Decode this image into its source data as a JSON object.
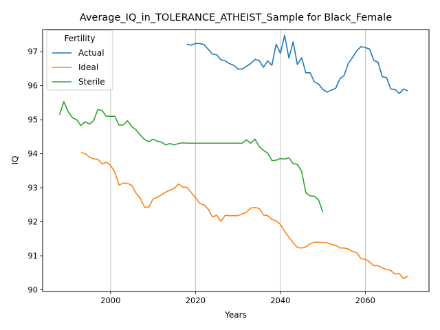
{
  "chart_data": {
    "type": "line",
    "title": "Average_IQ_in_TOLERANCE_ATHEIST_Sample for Black_Female",
    "xlabel": "Years",
    "ylabel": "IQ",
    "xlim": [
      1984,
      2075
    ],
    "ylim": [
      89.95,
      97.65
    ],
    "xticks": [
      2000,
      2020,
      2040,
      2060
    ],
    "yticks": [
      90,
      91,
      92,
      93,
      94,
      95,
      96,
      97
    ],
    "grid": "x-only",
    "legend": {
      "title": "Fertility",
      "placement": "top-left"
    },
    "series": [
      {
        "name": "Actual",
        "color": "#1f77b4",
        "x": [
          2018,
          2019,
          2020,
          2021,
          2022,
          2023,
          2024,
          2025,
          2026,
          2027,
          2028,
          2029,
          2030,
          2031,
          2032,
          2033,
          2034,
          2035,
          2036,
          2037,
          2038,
          2039,
          2040,
          2041,
          2042,
          2043,
          2044,
          2045,
          2046,
          2047,
          2048,
          2049,
          2050,
          2051,
          2052,
          2053,
          2054,
          2055,
          2056,
          2057,
          2058,
          2059,
          2060,
          2061,
          2062,
          2063,
          2064,
          2065,
          2066,
          2067,
          2068,
          2069,
          2070
        ],
        "values": [
          97.22,
          97.19,
          97.24,
          97.24,
          97.21,
          97.07,
          96.93,
          96.91,
          96.76,
          96.73,
          96.65,
          96.6,
          96.49,
          96.49,
          96.57,
          96.65,
          96.77,
          96.74,
          96.54,
          96.73,
          96.6,
          97.22,
          96.95,
          97.48,
          96.81,
          97.29,
          96.62,
          96.82,
          96.38,
          96.38,
          96.11,
          96.05,
          95.89,
          95.81,
          95.87,
          95.92,
          96.2,
          96.3,
          96.66,
          96.83,
          97.03,
          97.15,
          97.12,
          97.08,
          96.74,
          96.69,
          96.26,
          96.24,
          95.9,
          95.89,
          95.77,
          95.9,
          95.85
        ]
      },
      {
        "name": "Ideal",
        "color": "#ff7f0e",
        "x": [
          1993,
          1994,
          1995,
          1996,
          1997,
          1998,
          1999,
          2000,
          2001,
          2002,
          2003,
          2004,
          2005,
          2006,
          2007,
          2008,
          2009,
          2010,
          2011,
          2012,
          2013,
          2014,
          2015,
          2016,
          2017,
          2018,
          2019,
          2020,
          2021,
          2022,
          2023,
          2024,
          2025,
          2026,
          2027,
          2028,
          2029,
          2030,
          2031,
          2032,
          2033,
          2034,
          2035,
          2036,
          2037,
          2038,
          2039,
          2040,
          2041,
          2042,
          2043,
          2044,
          2045,
          2046,
          2047,
          2048,
          2049,
          2050,
          2051,
          2052,
          2053,
          2054,
          2055,
          2056,
          2057,
          2058,
          2059,
          2060,
          2061,
          2062,
          2063,
          2064,
          2065,
          2066,
          2067,
          2068,
          2069,
          2070
        ],
        "values": [
          94.03,
          94.01,
          93.9,
          93.85,
          93.84,
          93.7,
          93.75,
          93.66,
          93.46,
          93.08,
          93.14,
          93.13,
          93.07,
          92.84,
          92.69,
          92.43,
          92.43,
          92.67,
          92.72,
          92.79,
          92.87,
          92.93,
          92.98,
          93.11,
          93.02,
          93.01,
          92.86,
          92.71,
          92.54,
          92.5,
          92.37,
          92.14,
          92.19,
          92.01,
          92.19,
          92.18,
          92.18,
          92.18,
          92.23,
          92.28,
          92.4,
          92.42,
          92.39,
          92.2,
          92.18,
          92.07,
          92.03,
          91.92,
          91.72,
          91.54,
          91.39,
          91.24,
          91.23,
          91.26,
          91.35,
          91.4,
          91.4,
          91.39,
          91.38,
          91.34,
          91.31,
          91.23,
          91.23,
          91.2,
          91.13,
          91.09,
          90.91,
          90.9,
          90.82,
          90.71,
          90.71,
          90.64,
          90.6,
          90.57,
          90.46,
          90.48,
          90.33,
          90.4
        ]
      },
      {
        "name": "Sterile",
        "color": "#2ca02c",
        "x": [
          1988,
          1989,
          1990,
          1991,
          1992,
          1993,
          1994,
          1995,
          1996,
          1997,
          1998,
          1999,
          2000,
          2001,
          2002,
          2003,
          2004,
          2005,
          2006,
          2007,
          2008,
          2009,
          2010,
          2011,
          2012,
          2013,
          2014,
          2015,
          2016,
          2017,
          2018,
          2019,
          2020,
          2021,
          2022,
          2023,
          2024,
          2025,
          2026,
          2027,
          2028,
          2029,
          2030,
          2031,
          2032,
          2033,
          2034,
          2035,
          2036,
          2037,
          2038,
          2039,
          2040,
          2041,
          2042,
          2043,
          2044,
          2045,
          2046,
          2047,
          2048,
          2049,
          2050
        ],
        "values": [
          95.15,
          95.53,
          95.24,
          95.06,
          95.0,
          94.83,
          94.94,
          94.87,
          94.97,
          95.3,
          95.27,
          95.1,
          95.1,
          95.1,
          94.84,
          94.85,
          94.97,
          94.8,
          94.7,
          94.55,
          94.42,
          94.35,
          94.43,
          94.37,
          94.34,
          94.26,
          94.3,
          94.26,
          94.3,
          94.32,
          94.31,
          94.31,
          94.31,
          94.31,
          94.31,
          94.31,
          94.31,
          94.31,
          94.31,
          94.31,
          94.31,
          94.31,
          94.31,
          94.31,
          94.41,
          94.31,
          94.43,
          94.21,
          94.1,
          94.02,
          93.8,
          93.81,
          93.86,
          93.84,
          93.88,
          93.71,
          93.69,
          93.48,
          92.85,
          92.76,
          92.75,
          92.64,
          92.28
        ]
      }
    ]
  }
}
